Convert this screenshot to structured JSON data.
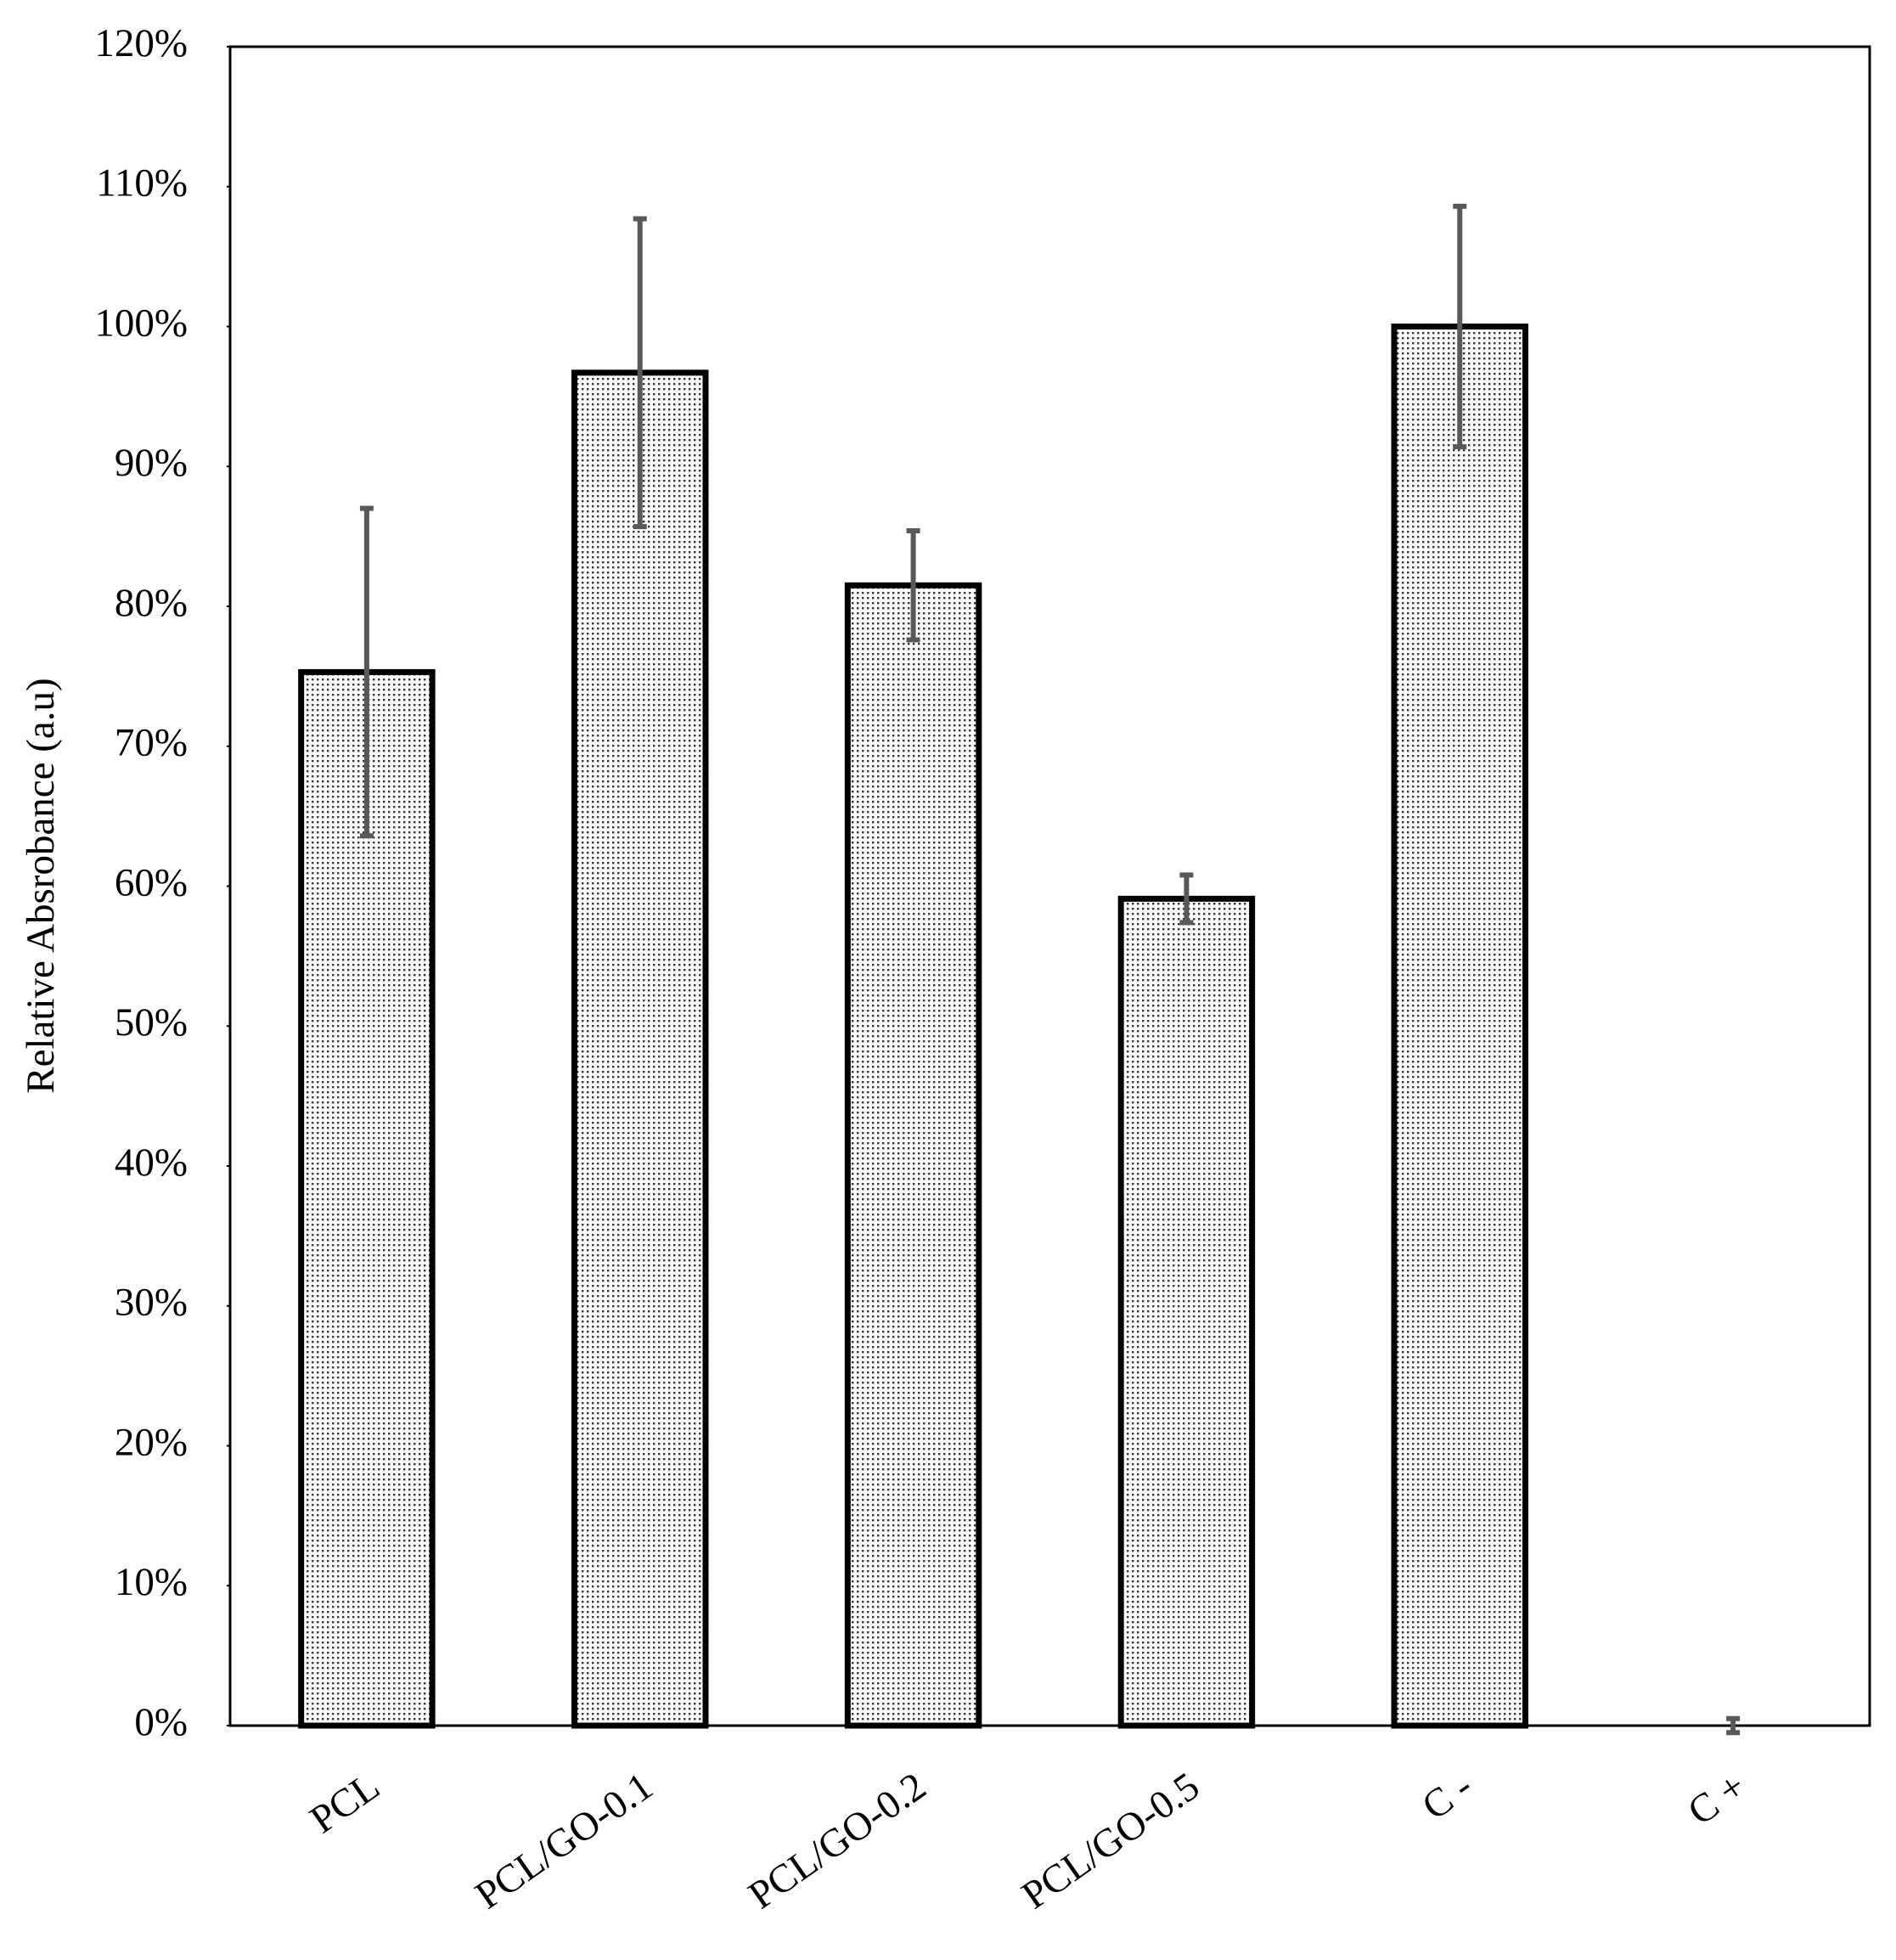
{
  "chart_data": {
    "type": "bar",
    "y_label": "Relative Absrobance (a.u)",
    "categories": [
      "PCL",
      "PCL/GO-0.1",
      "PCL/GO-0.2",
      "PCL/GO-0.5",
      "C -",
      "C +"
    ],
    "values": [
      75.3,
      96.7,
      81.5,
      59.1,
      100,
      0
    ],
    "errors": [
      11.7,
      11,
      3.9,
      1.7,
      8.6,
      0.5
    ],
    "color": "#ffffff",
    "error_color": "#595959",
    "ylim": [
      0,
      120
    ],
    "yticks": [
      {
        "value": 0,
        "label": "0%"
      },
      {
        "value": 10,
        "label": "10%"
      },
      {
        "value": 20,
        "label": "20%"
      },
      {
        "value": 30,
        "label": "30%"
      },
      {
        "value": 40,
        "label": "40%"
      },
      {
        "value": 50,
        "label": "50%"
      },
      {
        "value": 60,
        "label": "60%"
      },
      {
        "value": 70,
        "label": "70%"
      },
      {
        "value": 80,
        "label": "80%"
      },
      {
        "value": 90,
        "label": "90%"
      },
      {
        "value": 100,
        "label": "100%"
      },
      {
        "value": 110,
        "label": "110%"
      },
      {
        "value": 120,
        "label": "120%"
      }
    ],
    "grid": false
  }
}
